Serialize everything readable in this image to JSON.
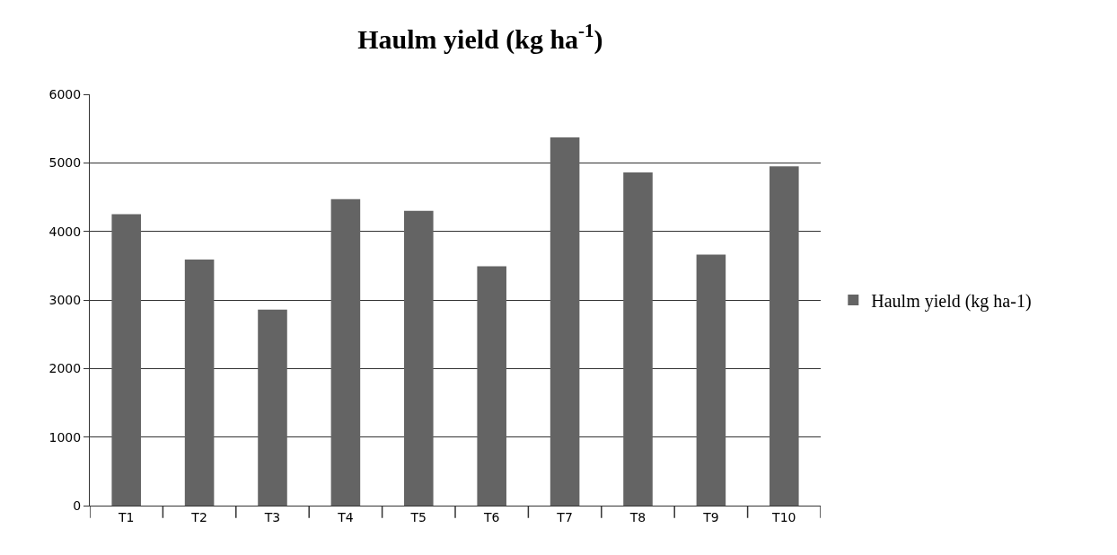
{
  "chart_data": {
    "type": "bar",
    "title": "Haulm yield (kg ha$^{-1}$)",
    "categories": [
      "T1",
      "T2",
      "T3",
      "T4",
      "T5",
      "T6",
      "T7",
      "T8",
      "T9",
      "T10"
    ],
    "series": [
      {
        "name": "Haulm yield (kg ha-1)",
        "color": "#646464",
        "values": [
          4250,
          3590,
          2860,
          4470,
          4300,
          3490,
          5370,
          4860,
          3660,
          4950
        ]
      }
    ],
    "ylim": [
      0,
      6000
    ],
    "yticks": [
      0,
      1000,
      2000,
      3000,
      4000,
      5000,
      6000
    ],
    "grid": "y",
    "legend": "right"
  }
}
